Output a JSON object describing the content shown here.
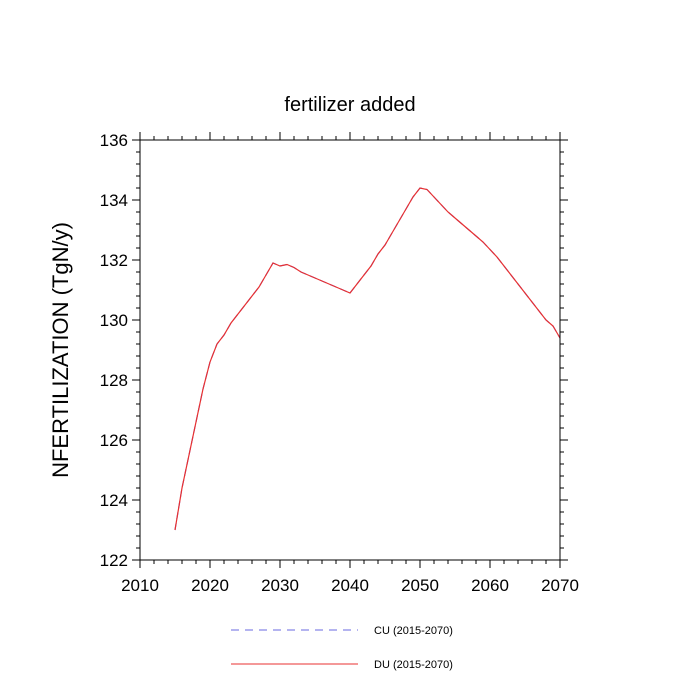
{
  "chart_data": {
    "type": "line",
    "title": "fertilizer added",
    "xlabel": "",
    "ylabel": "NFERTILIZATION  (TgN/y)",
    "xlim": [
      2010,
      2070
    ],
    "ylim": [
      122,
      136
    ],
    "x_ticks": [
      2010,
      2020,
      2030,
      2040,
      2050,
      2060,
      2070
    ],
    "y_ticks": [
      122,
      124,
      126,
      128,
      130,
      132,
      134,
      136
    ],
    "x_tick_labels": [
      "2010",
      "2020",
      "2030",
      "2040",
      "2050",
      "2060",
      "2070"
    ],
    "y_tick_labels": [
      "122",
      "124",
      "126",
      "128",
      "130",
      "132",
      "134",
      "136"
    ],
    "legend_position": "bottom",
    "series": [
      {
        "name": "CU (2015-2070)",
        "color": "#6a6ae0",
        "style": "dashed",
        "x": [
          2015,
          2016,
          2017,
          2018,
          2019,
          2020,
          2021,
          2022,
          2023,
          2024,
          2025,
          2026,
          2027,
          2028,
          2029,
          2030,
          2031,
          2032,
          2033,
          2034,
          2035,
          2036,
          2037,
          2038,
          2039,
          2040,
          2041,
          2042,
          2043,
          2044,
          2045,
          2046,
          2047,
          2048,
          2049,
          2050,
          2051,
          2052,
          2053,
          2054,
          2055,
          2056,
          2057,
          2058,
          2059,
          2060,
          2061,
          2062,
          2063,
          2064,
          2065,
          2066,
          2067,
          2068,
          2069,
          2070
        ],
        "values": [
          123.0,
          124.4,
          125.5,
          126.6,
          127.7,
          128.6,
          129.2,
          129.5,
          129.9,
          130.2,
          130.5,
          130.8,
          131.1,
          131.5,
          131.9,
          131.8,
          131.85,
          131.75,
          131.6,
          131.5,
          131.4,
          131.3,
          131.2,
          131.1,
          131.0,
          130.9,
          131.2,
          131.5,
          131.8,
          132.2,
          132.5,
          132.9,
          133.3,
          133.7,
          134.1,
          134.4,
          134.35,
          134.1,
          133.85,
          133.6,
          133.4,
          133.2,
          133.0,
          132.8,
          132.6,
          132.35,
          132.1,
          131.8,
          131.5,
          131.2,
          130.9,
          130.6,
          130.3,
          130.0,
          129.8,
          129.4
        ]
      },
      {
        "name": "DU (2015-2070)",
        "color": "#e83030",
        "style": "solid",
        "x": [
          2015,
          2016,
          2017,
          2018,
          2019,
          2020,
          2021,
          2022,
          2023,
          2024,
          2025,
          2026,
          2027,
          2028,
          2029,
          2030,
          2031,
          2032,
          2033,
          2034,
          2035,
          2036,
          2037,
          2038,
          2039,
          2040,
          2041,
          2042,
          2043,
          2044,
          2045,
          2046,
          2047,
          2048,
          2049,
          2050,
          2051,
          2052,
          2053,
          2054,
          2055,
          2056,
          2057,
          2058,
          2059,
          2060,
          2061,
          2062,
          2063,
          2064,
          2065,
          2066,
          2067,
          2068,
          2069,
          2070
        ],
        "values": [
          123.0,
          124.4,
          125.5,
          126.6,
          127.7,
          128.6,
          129.2,
          129.5,
          129.9,
          130.2,
          130.5,
          130.8,
          131.1,
          131.5,
          131.9,
          131.8,
          131.85,
          131.75,
          131.6,
          131.5,
          131.4,
          131.3,
          131.2,
          131.1,
          131.0,
          130.9,
          131.2,
          131.5,
          131.8,
          132.2,
          132.5,
          132.9,
          133.3,
          133.7,
          134.1,
          134.4,
          134.35,
          134.1,
          133.85,
          133.6,
          133.4,
          133.2,
          133.0,
          132.8,
          132.6,
          132.35,
          132.1,
          131.8,
          131.5,
          131.2,
          130.9,
          130.6,
          130.3,
          130.0,
          129.8,
          129.4
        ]
      }
    ]
  }
}
